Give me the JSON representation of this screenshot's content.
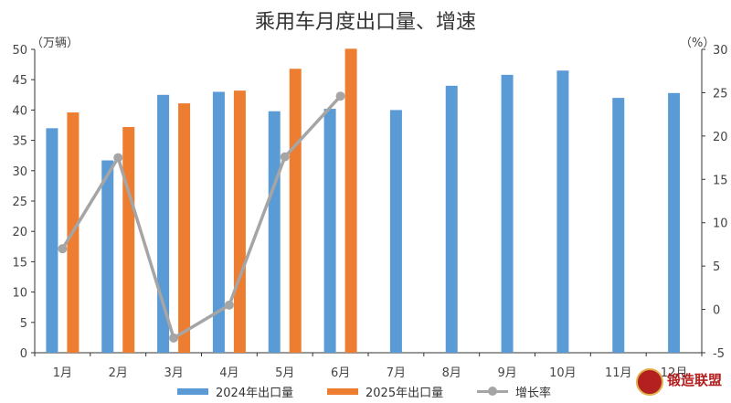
{
  "title": "乘用车月度出口量、增速",
  "left_unit": "（万辆）",
  "right_unit": "（%）",
  "colors": {
    "series_2024": "#5b9bd5",
    "series_2025": "#ed7d31",
    "growth": "#a5a5a5",
    "axis": "#333333"
  },
  "chart_data": {
    "type": "bar",
    "title": "乘用车月度出口量、增速",
    "categories": [
      "1月",
      "2月",
      "3月",
      "4月",
      "5月",
      "6月",
      "7月",
      "8月",
      "9月",
      "10月",
      "11月",
      "12月"
    ],
    "ylim": [
      0,
      50
    ],
    "yticks": [
      0,
      5,
      10,
      15,
      20,
      25,
      30,
      35,
      40,
      45,
      50
    ],
    "y2lim": [
      -5,
      30
    ],
    "y2ticks": [
      -5,
      0,
      5,
      10,
      15,
      20,
      25,
      30
    ],
    "series": [
      {
        "name": "2024年出口量",
        "type": "bar",
        "axis": "left",
        "values": [
          37.0,
          31.7,
          42.5,
          43.0,
          39.8,
          40.2,
          40.0,
          44.0,
          45.8,
          46.5,
          42.0,
          42.8
        ]
      },
      {
        "name": "2025年出口量",
        "type": "bar",
        "axis": "left",
        "values": [
          39.6,
          37.2,
          41.1,
          43.2,
          46.8,
          50.1,
          null,
          null,
          null,
          null,
          null,
          null
        ]
      },
      {
        "name": "增长率",
        "type": "line",
        "axis": "right",
        "values": [
          7.0,
          17.5,
          -3.3,
          0.5,
          17.6,
          24.6,
          null,
          null,
          null,
          null,
          null,
          null
        ]
      }
    ],
    "legend_position": "bottom",
    "grid": false
  },
  "watermark": {
    "text": "锻造联盟"
  }
}
